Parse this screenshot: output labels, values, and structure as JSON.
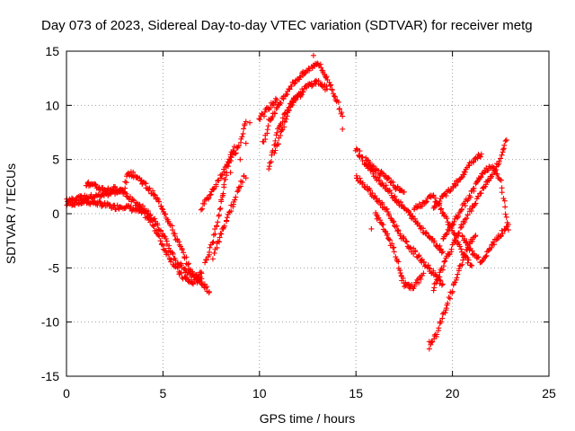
{
  "chart_data": {
    "type": "scatter",
    "title": "Day 073 of 2023, Sidereal Day-to-day VTEC variation (SDTVAR) for receiver metg",
    "xlabel": "GPS time / hours",
    "ylabel": "SDTVAR / TECUs",
    "xlim": [
      0,
      25
    ],
    "ylim": [
      -15,
      15
    ],
    "xticks": [
      0,
      5,
      10,
      15,
      20,
      25
    ],
    "yticks": [
      -15,
      -10,
      -5,
      0,
      5,
      10,
      15
    ],
    "grid": true,
    "marker": "+",
    "color": "#ff0000",
    "series": [
      {
        "name": "sat-a",
        "points": [
          [
            0.0,
            0.9
          ],
          [
            0.5,
            1.0
          ],
          [
            1.0,
            1.1
          ],
          [
            1.5,
            1.0
          ],
          [
            2.0,
            0.8
          ],
          [
            2.5,
            0.6
          ],
          [
            3.0,
            0.7
          ],
          [
            3.5,
            0.4
          ],
          [
            4.0,
            0.0
          ],
          [
            4.5,
            -1.0
          ],
          [
            5.0,
            -3.0
          ],
          [
            5.5,
            -4.5
          ],
          [
            6.0,
            -5.8
          ],
          [
            6.5,
            -6.4
          ],
          [
            7.0,
            -6.0
          ]
        ]
      },
      {
        "name": "sat-b",
        "points": [
          [
            0.0,
            1.3
          ],
          [
            0.5,
            1.4
          ],
          [
            1.0,
            1.5
          ],
          [
            1.5,
            1.6
          ],
          [
            2.0,
            1.8
          ],
          [
            2.5,
            2.0
          ],
          [
            3.0,
            2.2
          ],
          [
            3.2,
            3.8
          ],
          [
            3.6,
            3.5
          ],
          [
            4.0,
            2.8
          ],
          [
            4.5,
            1.8
          ],
          [
            5.0,
            0.5
          ],
          [
            5.5,
            -1.5
          ],
          [
            6.0,
            -3.5
          ],
          [
            6.5,
            -5.5
          ],
          [
            7.0,
            -6.3
          ],
          [
            7.4,
            -7.2
          ]
        ]
      },
      {
        "name": "sat-c",
        "points": [
          [
            1.0,
            2.8
          ],
          [
            1.5,
            2.5
          ],
          [
            2.0,
            2.2
          ],
          [
            2.5,
            2.3
          ],
          [
            3.0,
            2.0
          ],
          [
            3.5,
            1.0
          ],
          [
            4.0,
            0.5
          ],
          [
            4.5,
            -0.5
          ],
          [
            5.0,
            -2.0
          ],
          [
            5.5,
            -3.8
          ],
          [
            6.0,
            -5.0
          ],
          [
            6.5,
            -5.8
          ],
          [
            7.0,
            -5.5
          ]
        ]
      },
      {
        "name": "sat-d",
        "points": [
          [
            7.2,
            -4.5
          ],
          [
            7.5,
            -3.0
          ],
          [
            7.8,
            -1.0
          ],
          [
            8.0,
            1.0
          ],
          [
            8.2,
            3.0
          ],
          [
            8.4,
            5.0
          ],
          [
            8.7,
            6.2
          ]
        ]
      },
      {
        "name": "sat-e",
        "points": [
          [
            7.0,
            0.5
          ],
          [
            7.5,
            2.0
          ],
          [
            8.0,
            3.5
          ],
          [
            8.5,
            5.0
          ],
          [
            9.0,
            6.5
          ],
          [
            9.3,
            8.5
          ]
        ]
      },
      {
        "name": "sat-f",
        "points": [
          [
            7.6,
            -4.0
          ],
          [
            8.0,
            -2.0
          ],
          [
            8.3,
            -0.5
          ],
          [
            8.6,
            0.8
          ],
          [
            9.2,
            3.5
          ]
        ]
      },
      {
        "name": "sat-g",
        "points": [
          [
            10.2,
            6.5
          ],
          [
            10.5,
            8.5
          ],
          [
            11.0,
            10.0
          ],
          [
            11.5,
            11.5
          ],
          [
            12.0,
            12.5
          ],
          [
            12.5,
            13.2
          ],
          [
            13.0,
            14.0
          ],
          [
            13.5,
            12.5
          ],
          [
            14.0,
            10.5
          ],
          [
            14.3,
            9.0
          ]
        ]
      },
      {
        "name": "sat-h",
        "points": [
          [
            10.8,
            5.5
          ],
          [
            11.2,
            8.0
          ],
          [
            11.6,
            10.0
          ],
          [
            12.0,
            11.0
          ],
          [
            12.5,
            11.8
          ],
          [
            13.0,
            12.2
          ],
          [
            13.5,
            11.5
          ]
        ]
      },
      {
        "name": "sat-i",
        "points": [
          [
            10.5,
            4.0
          ],
          [
            10.7,
            6.0
          ],
          [
            11.0,
            8.0
          ],
          [
            11.4,
            9.5
          ],
          [
            11.8,
            10.5
          ],
          [
            12.2,
            11.0
          ]
        ]
      },
      {
        "name": "sat-j",
        "points": [
          [
            10.0,
            8.8
          ],
          [
            10.3,
            9.4
          ],
          [
            10.6,
            10.0
          ],
          [
            10.9,
            10.5
          ]
        ]
      },
      {
        "name": "sat-k",
        "points": [
          [
            15.0,
            6.0
          ],
          [
            15.5,
            4.5
          ],
          [
            16.0,
            3.5
          ],
          [
            16.5,
            2.5
          ],
          [
            17.0,
            1.5
          ],
          [
            17.5,
            0.5
          ],
          [
            18.0,
            -0.5
          ],
          [
            18.5,
            -1.5
          ],
          [
            19.0,
            -2.5
          ],
          [
            19.5,
            -3.5
          ]
        ]
      },
      {
        "name": "sat-l",
        "points": [
          [
            15.0,
            3.5
          ],
          [
            15.5,
            2.5
          ],
          [
            16.0,
            1.5
          ],
          [
            16.5,
            0.5
          ],
          [
            17.0,
            -1.0
          ],
          [
            17.5,
            -2.5
          ],
          [
            18.0,
            -3.5
          ],
          [
            18.5,
            -4.5
          ],
          [
            19.0,
            -5.5
          ],
          [
            19.5,
            -6.5
          ]
        ]
      },
      {
        "name": "sat-m",
        "points": [
          [
            15.5,
            5.0
          ],
          [
            16.0,
            4.0
          ],
          [
            16.5,
            3.5
          ],
          [
            17.0,
            2.5
          ],
          [
            17.5,
            2.0
          ]
        ]
      },
      {
        "name": "sat-n",
        "points": [
          [
            16.0,
            0.0
          ],
          [
            16.5,
            -1.5
          ],
          [
            17.0,
            -3.5
          ],
          [
            17.3,
            -5.5
          ],
          [
            17.5,
            -6.5
          ],
          [
            18.0,
            -6.8
          ],
          [
            18.5,
            -5.5
          ]
        ]
      },
      {
        "name": "sat-o",
        "points": [
          [
            18.8,
            -12.3
          ],
          [
            19.2,
            -11.0
          ],
          [
            19.6,
            -9.0
          ],
          [
            20.0,
            -7.0
          ],
          [
            20.4,
            -5.0
          ],
          [
            20.8,
            -3.0
          ],
          [
            21.2,
            -2.0
          ]
        ]
      },
      {
        "name": "sat-p",
        "points": [
          [
            19.0,
            -7.0
          ],
          [
            19.5,
            -5.0
          ],
          [
            20.0,
            -3.0
          ],
          [
            20.5,
            -1.0
          ],
          [
            21.0,
            0.5
          ],
          [
            21.5,
            2.0
          ],
          [
            22.0,
            3.5
          ],
          [
            22.5,
            5.0
          ],
          [
            22.8,
            6.8
          ]
        ]
      },
      {
        "name": "sat-q",
        "points": [
          [
            19.0,
            0.5
          ],
          [
            19.5,
            1.5
          ],
          [
            20.0,
            2.5
          ],
          [
            20.5,
            3.5
          ],
          [
            21.0,
            4.8
          ],
          [
            21.5,
            5.5
          ]
        ]
      },
      {
        "name": "sat-r",
        "points": [
          [
            19.5,
            -2.5
          ],
          [
            20.0,
            -1.0
          ],
          [
            20.5,
            0.5
          ],
          [
            21.0,
            2.0
          ],
          [
            21.5,
            3.5
          ],
          [
            22.0,
            4.5
          ],
          [
            22.5,
            3.0
          ],
          [
            22.9,
            -1.5
          ]
        ]
      },
      {
        "name": "sat-s",
        "points": [
          [
            20.5,
            -2.0
          ],
          [
            21.0,
            -3.5
          ],
          [
            21.5,
            -4.5
          ],
          [
            22.0,
            -3.0
          ],
          [
            22.5,
            -2.0
          ],
          [
            22.9,
            -1.0
          ]
        ]
      },
      {
        "name": "sat-t",
        "points": [
          [
            18.0,
            0.5
          ],
          [
            18.5,
            1.0
          ],
          [
            19.0,
            1.8
          ],
          [
            19.5,
            0.0
          ],
          [
            20.0,
            -1.5
          ],
          [
            20.5,
            -3.5
          ],
          [
            21.0,
            -4.8
          ]
        ]
      }
    ],
    "isolated_points": [
      [
        9.3,
        6.5
      ],
      [
        9.0,
        5.0
      ],
      [
        9.3,
        3.3
      ],
      [
        8.5,
        3.8
      ],
      [
        8.1,
        1.7
      ],
      [
        9.5,
        8.4
      ],
      [
        14.3,
        7.8
      ],
      [
        15.8,
        -1.4
      ],
      [
        12.8,
        14.6
      ],
      [
        18.8,
        -11.8
      ],
      [
        15.2,
        5.8
      ]
    ]
  }
}
